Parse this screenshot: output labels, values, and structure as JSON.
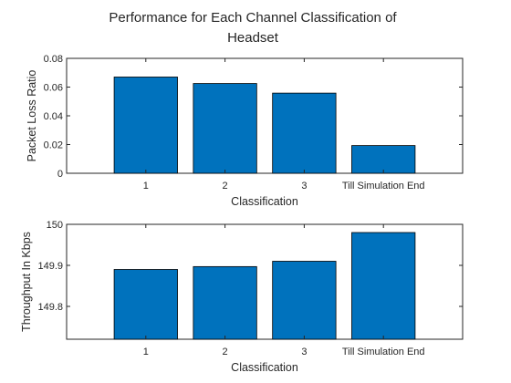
{
  "title_line1": "Performance for Each Channel Classification of",
  "title_line2": "Headset",
  "colors": {
    "bar": "#0072BD"
  },
  "chart_data": [
    {
      "type": "bar",
      "categories": [
        "1",
        "2",
        "3",
        "Till Simulation End"
      ],
      "values": [
        0.067,
        0.0625,
        0.0558,
        0.0193
      ],
      "xlabel": "Classification",
      "ylabel": "Packet Loss Ratio",
      "ylim": [
        0,
        0.08
      ],
      "yticks": [
        0,
        0.02,
        0.04,
        0.06,
        0.08
      ],
      "ytick_labels": [
        "0",
        "0.02",
        "0.04",
        "0.06",
        "0.08"
      ],
      "grid": false
    },
    {
      "type": "bar",
      "categories": [
        "1",
        "2",
        "3",
        "Till Simulation End"
      ],
      "values": [
        149.89,
        149.897,
        149.91,
        149.98
      ],
      "xlabel": "Classification",
      "ylabel": "Throughput In Kbps",
      "ylim": [
        149.72,
        150
      ],
      "yticks": [
        149.8,
        149.9,
        150
      ],
      "ytick_labels": [
        "149.8",
        "149.9",
        "150"
      ],
      "grid": false
    }
  ]
}
